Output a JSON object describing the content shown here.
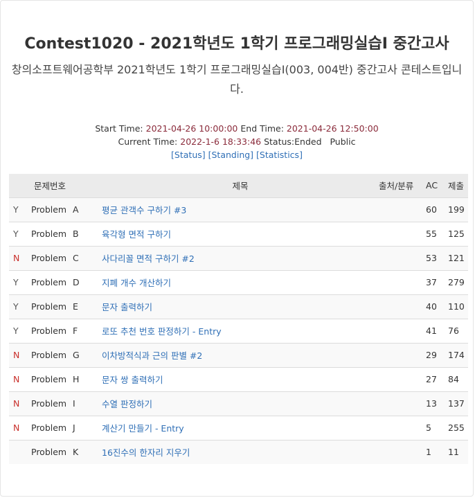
{
  "contest": {
    "title": "Contest1020 - 2021학년도 1학기 프로그래밍실습I 중간고사",
    "description": "창의소프트웨어공학부 2021학년도 1학기 프로그래밍실습I(003, 004반) 중간고사 콘테스트입니다."
  },
  "info": {
    "start_label": "Start Time:",
    "start_time": "2021-04-26 10:00:00",
    "end_label": "End Time:",
    "end_time": "2021-04-26 12:50:00",
    "current_label": "Current Time:",
    "current_time": "2022-1-6 18:33:46",
    "status_label": "Status:",
    "status_value": "Ended",
    "visibility": "Public",
    "links": [
      "[Status]",
      "[Standing]",
      "[Statistics]"
    ]
  },
  "table": {
    "headers": {
      "number": "문제번호",
      "title": "제목",
      "source": "출처/분류",
      "ac": "AC",
      "submit": "제출"
    },
    "rows": [
      {
        "result": "Y",
        "label": "Problem",
        "id": "A",
        "title": "평균 관객수 구하기 #3",
        "source": "",
        "ac": "60",
        "submit": "199"
      },
      {
        "result": "Y",
        "label": "Problem",
        "id": "B",
        "title": "육각형 면적 구하기",
        "source": "",
        "ac": "55",
        "submit": "125"
      },
      {
        "result": "N",
        "label": "Problem",
        "id": "C",
        "title": "사다리꼴 면적 구하기 #2",
        "source": "",
        "ac": "53",
        "submit": "121"
      },
      {
        "result": "Y",
        "label": "Problem",
        "id": "D",
        "title": "지폐 개수 개산하기",
        "source": "",
        "ac": "37",
        "submit": "279"
      },
      {
        "result": "Y",
        "label": "Problem",
        "id": "E",
        "title": "문자 출력하기",
        "source": "",
        "ac": "40",
        "submit": "110"
      },
      {
        "result": "Y",
        "label": "Problem",
        "id": "F",
        "title": "로또 추천 번호 판정하기 - Entry",
        "source": "",
        "ac": "41",
        "submit": "76"
      },
      {
        "result": "N",
        "label": "Problem",
        "id": "G",
        "title": "이차방적식과 근의 판별 #2",
        "source": "",
        "ac": "29",
        "submit": "174"
      },
      {
        "result": "N",
        "label": "Problem",
        "id": "H",
        "title": "문자 쌍 출력하기",
        "source": "",
        "ac": "27",
        "submit": "84"
      },
      {
        "result": "N",
        "label": "Problem",
        "id": "I",
        "title": "수열 판정하기",
        "source": "",
        "ac": "13",
        "submit": "137"
      },
      {
        "result": "N",
        "label": "Problem",
        "id": "J",
        "title": "계산기 만들기 - Entry",
        "source": "",
        "ac": "5",
        "submit": "255"
      },
      {
        "result": "",
        "label": "Problem",
        "id": "K",
        "title": "16진수의 한자리 지우기",
        "source": "",
        "ac": "1",
        "submit": "11"
      }
    ]
  },
  "colors": {
    "link": "#2f6fb6",
    "time": "#8a2a3a",
    "wrong": "#c9302c",
    "header_bg": "#ebebeb"
  }
}
